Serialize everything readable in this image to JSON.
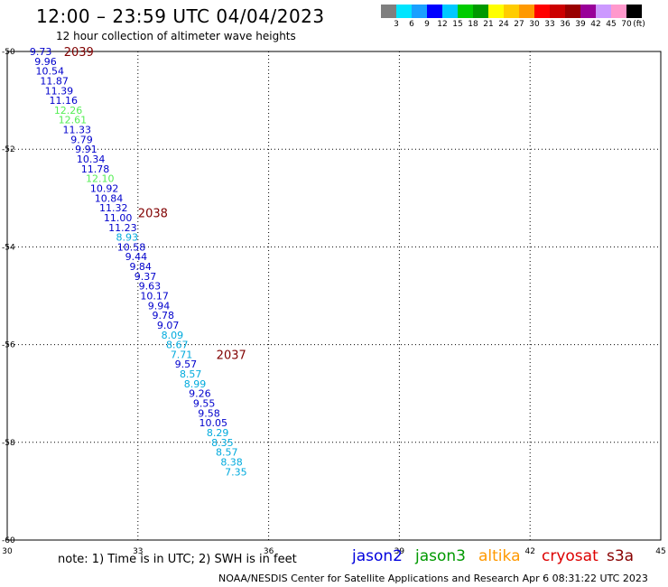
{
  "header": {
    "title": "12:00 – 23:59 UTC 04/04/2023",
    "subtitle": "12 hour collection of altimeter wave heights"
  },
  "legend": {
    "colors": [
      "#7f7f7f",
      "#00e5ff",
      "#1aa0ff",
      "#0000ff",
      "#00c8ff",
      "#00cc00",
      "#009900",
      "#ffff00",
      "#ffcc00",
      "#ff9900",
      "#ff0000",
      "#cc0000",
      "#990000",
      "#990099",
      "#cc99ff",
      "#ff99cc",
      "#000000"
    ],
    "labels": [
      "3",
      "6",
      "9",
      "12",
      "15",
      "18",
      "21",
      "24",
      "27",
      "30",
      "33",
      "36",
      "39",
      "42",
      "45",
      "70",
      "(ft)"
    ]
  },
  "map": {
    "lon_ticks": [
      "30",
      "33",
      "36",
      "39",
      "42",
      "45"
    ],
    "lat_ticks": [
      "-50",
      "-52",
      "-54",
      "-56",
      "-58",
      "-60"
    ],
    "lon_range": [
      30,
      45
    ],
    "lat_range": [
      -50,
      -60
    ],
    "measurements": [
      {
        "value": "9.73",
        "lon": 30.77,
        "lat": -50.0,
        "color": "#0000cc"
      },
      {
        "value": "9.96",
        "lon": 30.88,
        "lat": -50.2,
        "color": "#0000cc"
      },
      {
        "value": "10.54",
        "lon": 30.98,
        "lat": -50.4,
        "color": "#0000cc"
      },
      {
        "value": "11.87",
        "lon": 31.08,
        "lat": -50.6,
        "color": "#0000cc"
      },
      {
        "value": "11.39",
        "lon": 31.19,
        "lat": -50.8,
        "color": "#0000cc"
      },
      {
        "value": "11.16",
        "lon": 31.29,
        "lat": -51.0,
        "color": "#0000cc"
      },
      {
        "value": "12.26",
        "lon": 31.4,
        "lat": -51.2,
        "color": "#55ee55"
      },
      {
        "value": "12.61",
        "lon": 31.5,
        "lat": -51.4,
        "color": "#55ee55"
      },
      {
        "value": "11.33",
        "lon": 31.6,
        "lat": -51.6,
        "color": "#0000cc"
      },
      {
        "value": "9.79",
        "lon": 31.71,
        "lat": -51.8,
        "color": "#0000cc"
      },
      {
        "value": "9.91",
        "lon": 31.81,
        "lat": -52.0,
        "color": "#0000cc"
      },
      {
        "value": "10.34",
        "lon": 31.92,
        "lat": -52.2,
        "color": "#0000cc"
      },
      {
        "value": "11.78",
        "lon": 32.02,
        "lat": -52.4,
        "color": "#0000cc"
      },
      {
        "value": "12.10",
        "lon": 32.13,
        "lat": -52.6,
        "color": "#55ee55"
      },
      {
        "value": "10.92",
        "lon": 32.23,
        "lat": -52.8,
        "color": "#0000cc"
      },
      {
        "value": "10.84",
        "lon": 32.33,
        "lat": -53.0,
        "color": "#0000cc"
      },
      {
        "value": "11.32",
        "lon": 32.44,
        "lat": -53.2,
        "color": "#0000cc"
      },
      {
        "value": "11.00",
        "lon": 32.54,
        "lat": -53.4,
        "color": "#0000cc"
      },
      {
        "value": "11.23",
        "lon": 32.65,
        "lat": -53.6,
        "color": "#0000cc"
      },
      {
        "value": "8.93",
        "lon": 32.75,
        "lat": -53.8,
        "color": "#00aadd"
      },
      {
        "value": "10.58",
        "lon": 32.85,
        "lat": -54.0,
        "color": "#0000cc"
      },
      {
        "value": "9.44",
        "lon": 32.96,
        "lat": -54.2,
        "color": "#0000cc"
      },
      {
        "value": "9.84",
        "lon": 33.06,
        "lat": -54.4,
        "color": "#0000cc"
      },
      {
        "value": "9.37",
        "lon": 33.17,
        "lat": -54.6,
        "color": "#0000cc"
      },
      {
        "value": "9.63",
        "lon": 33.27,
        "lat": -54.8,
        "color": "#0000cc"
      },
      {
        "value": "10.17",
        "lon": 33.38,
        "lat": -55.0,
        "color": "#0000cc"
      },
      {
        "value": "9.94",
        "lon": 33.48,
        "lat": -55.2,
        "color": "#0000cc"
      },
      {
        "value": "9.78",
        "lon": 33.58,
        "lat": -55.4,
        "color": "#0000cc"
      },
      {
        "value": "9.07",
        "lon": 33.69,
        "lat": -55.6,
        "color": "#0000cc"
      },
      {
        "value": "8.09",
        "lon": 33.79,
        "lat": -55.8,
        "color": "#00aadd"
      },
      {
        "value": "8.67",
        "lon": 33.9,
        "lat": -56.0,
        "color": "#00aadd"
      },
      {
        "value": "7.71",
        "lon": 34.0,
        "lat": -56.2,
        "color": "#00aadd"
      },
      {
        "value": "9.57",
        "lon": 34.1,
        "lat": -56.4,
        "color": "#0000cc"
      },
      {
        "value": "8.57",
        "lon": 34.21,
        "lat": -56.6,
        "color": "#00aadd"
      },
      {
        "value": "8.99",
        "lon": 34.31,
        "lat": -56.8,
        "color": "#00aadd"
      },
      {
        "value": "9.26",
        "lon": 34.42,
        "lat": -57.0,
        "color": "#0000cc"
      },
      {
        "value": "9.55",
        "lon": 34.52,
        "lat": -57.2,
        "color": "#0000cc"
      },
      {
        "value": "9.58",
        "lon": 34.63,
        "lat": -57.4,
        "color": "#0000cc"
      },
      {
        "value": "10.05",
        "lon": 34.73,
        "lat": -57.6,
        "color": "#0000cc"
      },
      {
        "value": "8.29",
        "lon": 34.83,
        "lat": -57.8,
        "color": "#00aadd"
      },
      {
        "value": "8.35",
        "lon": 34.94,
        "lat": -58.0,
        "color": "#00aadd"
      },
      {
        "value": "8.57",
        "lon": 35.04,
        "lat": -58.2,
        "color": "#00aadd"
      },
      {
        "value": "8.38",
        "lon": 35.15,
        "lat": -58.4,
        "color": "#00aadd"
      },
      {
        "value": "7.35",
        "lon": 35.25,
        "lat": -58.6,
        "color": "#00aadd"
      }
    ],
    "time_labels": [
      {
        "text": "2039",
        "lon": 31.3,
        "lat": -50.0
      },
      {
        "text": "2038",
        "lon": 33.0,
        "lat": -53.3
      },
      {
        "text": "2037",
        "lon": 34.8,
        "lat": -56.2
      }
    ],
    "time_label_color": "#800000"
  },
  "footer": {
    "note": "note:  1) Time is in UTC;  2) SWH is in feet",
    "satellites": [
      {
        "name": "jason2",
        "color": "#0000dd"
      },
      {
        "name": "jason3",
        "color": "#009900"
      },
      {
        "name": "altika",
        "color": "#ff9900"
      },
      {
        "name": "cryosat",
        "color": "#dd0000"
      },
      {
        "name": "s3a",
        "color": "#880000"
      }
    ],
    "credit": "NOAA/NESDIS Center for Satellite Applications and Research    Apr  6 08:31:22 UTC 2023"
  }
}
